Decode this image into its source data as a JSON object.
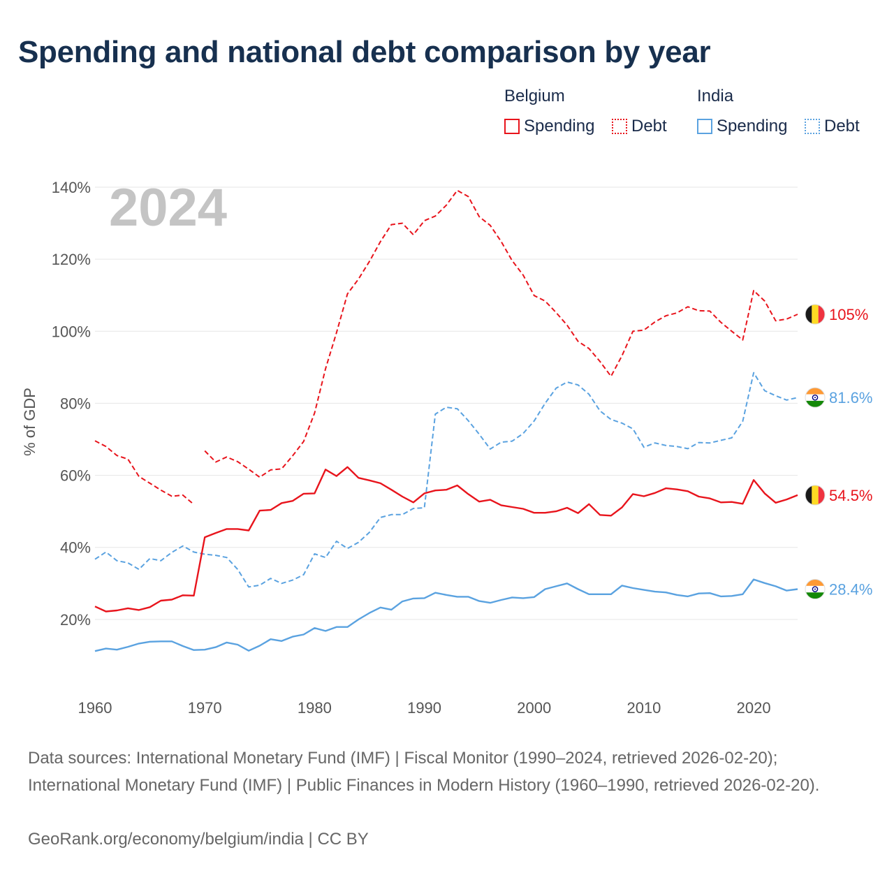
{
  "title": "Spending and national debt comparison by year",
  "legend": {
    "groups": [
      {
        "name": "Belgium",
        "color": "#e8141c",
        "items": [
          {
            "label": "Spending",
            "style": "solid"
          },
          {
            "label": "Debt",
            "style": "dotted"
          }
        ]
      },
      {
        "name": "India",
        "color": "#5aa2e0",
        "items": [
          {
            "label": "Spending",
            "style": "solid"
          },
          {
            "label": "Debt",
            "style": "dotted"
          }
        ]
      }
    ]
  },
  "footer": {
    "sources": "Data sources: International Monetary Fund (IMF) | Fiscal Monitor (1990–2024, retrieved 2026-02-20); International Monetary Fund (IMF) | Public Finances in Modern History (1960–1990, retrieved 2026-02-20).",
    "credit": "GeoRank.org/economy/belgium/india | CC BY"
  },
  "chart_data": {
    "type": "line",
    "year_label": "2024",
    "ylabel": "% of GDP",
    "xlim": [
      1960,
      2024
    ],
    "ylim": [
      0,
      140
    ],
    "xticks": [
      1960,
      1970,
      1980,
      1990,
      2000,
      2010,
      2020
    ],
    "yticks": [
      20,
      40,
      60,
      80,
      100,
      120,
      140
    ],
    "ytick_labels": [
      "20%",
      "40%",
      "60%",
      "80%",
      "100%",
      "120%",
      "140%"
    ],
    "grid": true,
    "series": [
      {
        "name": "Belgium Debt",
        "country": "Belgium",
        "flag": "belgium",
        "color": "#e8141c",
        "dashed": true,
        "end_label": "105%",
        "x_start": 1960,
        "gaps": [
          1969
        ],
        "values": [
          69.6,
          68,
          65.5,
          64.5,
          59.7,
          57.8,
          55.9,
          54.2,
          54.5,
          51.9,
          66.8,
          63.7,
          65.1,
          63.8,
          61.7,
          59.5,
          61.5,
          61.8,
          65.4,
          69.4,
          77.3,
          89.6,
          99.6,
          110.4,
          114.5,
          119.4,
          124.9,
          129.6,
          130,
          126.8,
          130.7,
          132,
          135,
          139.1,
          137.4,
          131.8,
          129.4,
          124.9,
          119.6,
          115.6,
          109.9,
          108.4,
          105.2,
          101.7,
          97.2,
          95.2,
          91.6,
          87.5,
          93.2,
          100,
          100.3,
          102.6,
          104.3,
          105.1,
          106.8,
          105.7,
          105.6,
          102.5,
          100,
          97.6,
          111.3,
          108.4,
          102.9,
          103.4,
          104.7
        ]
      },
      {
        "name": "India Debt",
        "country": "India",
        "flag": "india",
        "color": "#5aa2e0",
        "dashed": true,
        "end_label": "81.6%",
        "x_start": 1960,
        "gaps": [],
        "values": [
          36.7,
          38.7,
          36.3,
          35.7,
          33.9,
          36.9,
          36.3,
          38.6,
          40.4,
          38.7,
          38.1,
          37.8,
          37.2,
          33.9,
          29,
          29.5,
          31.4,
          30,
          30.9,
          32.4,
          38.2,
          37.2,
          41.7,
          39.7,
          41.4,
          44.2,
          48.3,
          49.1,
          49.1,
          50.8,
          51,
          77,
          78.9,
          78.5,
          75.2,
          71.4,
          67.3,
          69.2,
          69.5,
          71.6,
          75.1,
          80,
          84.2,
          85.9,
          85.1,
          82.5,
          77.9,
          75.5,
          74.5,
          72.9,
          67.8,
          69,
          68.3,
          68,
          67.4,
          69.1,
          69,
          69.7,
          70.4,
          75,
          88.5,
          83.5,
          82.1,
          80.9,
          81.6
        ]
      },
      {
        "name": "Belgium Spending",
        "country": "Belgium",
        "flag": "belgium",
        "color": "#e8141c",
        "dashed": false,
        "end_label": "54.5%",
        "x_start": 1960,
        "gaps": [],
        "values": [
          23.6,
          22.2,
          22.5,
          23.1,
          22.6,
          23.4,
          25.2,
          25.5,
          26.7,
          26.6,
          42.8,
          44,
          45.1,
          45.1,
          44.7,
          50.2,
          50.4,
          52.3,
          52.9,
          54.9,
          55,
          61.6,
          59.8,
          62.3,
          59.3,
          58.6,
          57.8,
          56,
          54.1,
          52.5,
          55,
          55.8,
          56,
          57.2,
          54.8,
          52.7,
          53.2,
          51.7,
          51.2,
          50.7,
          49.6,
          49.6,
          50,
          51,
          49.5,
          52,
          49,
          48.8,
          51.1,
          54.8,
          54.2,
          55.1,
          56.4,
          56.1,
          55.6,
          54.1,
          53.6,
          52.5,
          52.6,
          52.1,
          58.7,
          55,
          52.4,
          53.3,
          54.5
        ]
      },
      {
        "name": "India Spending",
        "country": "India",
        "flag": "india",
        "color": "#5aa2e0",
        "dashed": false,
        "end_label": "28.4%",
        "x_start": 1960,
        "gaps": [],
        "values": [
          11.2,
          11.9,
          11.6,
          12.4,
          13.3,
          13.8,
          13.9,
          13.9,
          12.6,
          11.5,
          11.6,
          12.3,
          13.6,
          13,
          11.3,
          12.7,
          14.5,
          14,
          15.2,
          15.8,
          17.6,
          16.8,
          17.9,
          17.9,
          20,
          21.8,
          23.3,
          22.7,
          25,
          25.8,
          25.9,
          27.4,
          26.8,
          26.3,
          26.3,
          25.1,
          24.6,
          25.4,
          26.1,
          25.9,
          26.2,
          28.4,
          29.2,
          30,
          28.4,
          27,
          27,
          27,
          29.4,
          28.7,
          28.2,
          27.7,
          27.5,
          26.8,
          26.4,
          27.2,
          27.3,
          26.4,
          26.5,
          27,
          31.1,
          30.1,
          29.2,
          28,
          28.4
        ]
      }
    ]
  }
}
